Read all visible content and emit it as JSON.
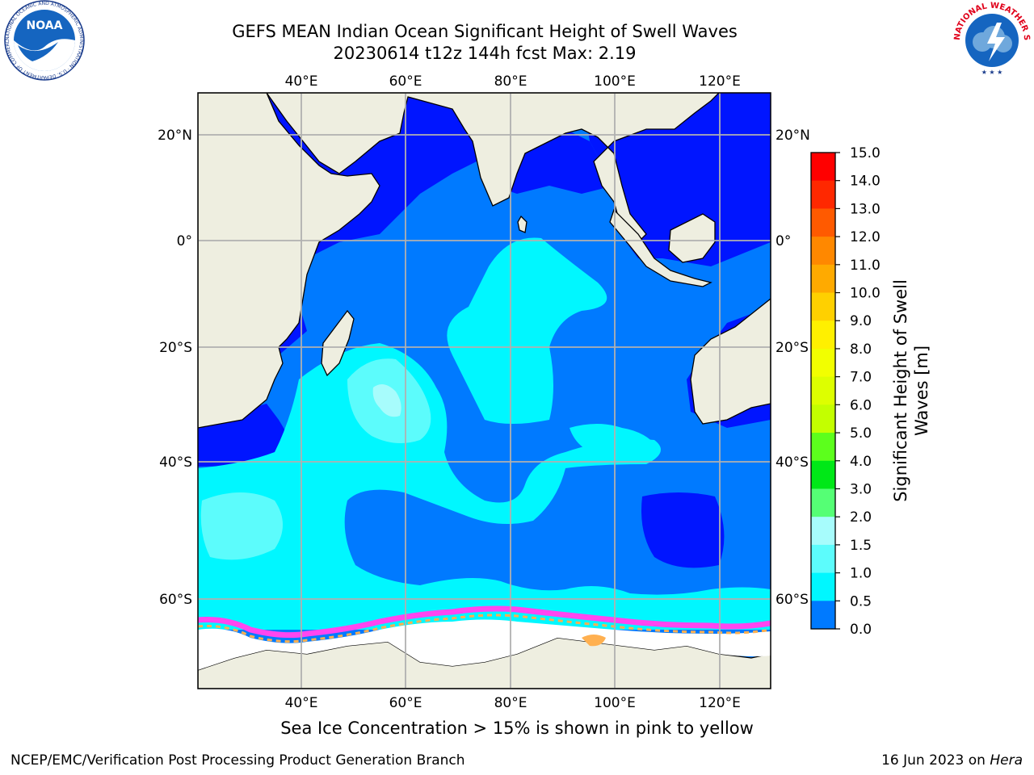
{
  "title_line1": "GEFS MEAN Indian Ocean Significant Height of Swell Waves",
  "title_line2": "20230614 t12z 144h fcst   Max: 2.19",
  "map": {
    "lon_ticks": [
      "40°E",
      "60°E",
      "80°E",
      "100°E",
      "120°E"
    ],
    "lat_ticks": [
      "20°N",
      "0°",
      "20°S",
      "40°S",
      "60°S"
    ],
    "colors": {
      "land": "#eeeee0",
      "ice": "#ffffff",
      "grid": "#b0b0b0",
      "bin_0_0_5": "#0015ff",
      "bin_0_5_1_0": "#007aff",
      "bin_1_0_1_5": "#00f7ff",
      "bin_1_5_2_0": "#5cfcfc",
      "bin_2_0_2_5": "#a7fcfc",
      "ice_edge_pink": "#ff46f0",
      "ice_edge_orange": "#ffb050"
    }
  },
  "colorbar": {
    "label": "Significant Height of Swell Waves [m]",
    "label_line1": "Significant Height of Swell",
    "label_line2": "Waves [m]",
    "ticks": [
      "15.0",
      "14.0",
      "13.0",
      "12.0",
      "11.0",
      "10.0",
      "9.0",
      "8.0",
      "7.0",
      "6.0",
      "5.0",
      "4.0",
      "3.0",
      "2.0",
      "1.5",
      "1.0",
      "0.5",
      "0.0"
    ],
    "bins": [
      "#ff0000",
      "#ff2800",
      "#ff5a00",
      "#ff8800",
      "#ffaa00",
      "#ffd000",
      "#fff000",
      "#f2ff00",
      "#ddff00",
      "#c3ff00",
      "#5cff1c",
      "#00e817",
      "#55ff75",
      "#a7fcfc",
      "#5cfcfc",
      "#00f7ff",
      "#007aff",
      "#0015ff"
    ]
  },
  "note": "Sea Ice Concentration > 15% is shown in pink to yellow",
  "footer_left": "NCEP/EMC/Verification Post Processing Product Generation Branch",
  "footer_date": "16 Jun 2023 on ",
  "footer_host": "Hera",
  "logos": {
    "noaa_text": "NOAA",
    "noaa_ring": "NATIONAL OCEANIC AND ATMOSPHERIC ADMINISTRATION · U.S. DEPARTMENT OF COMMERCE",
    "nws_ring": "NATIONAL WEATHER SERVICE"
  }
}
